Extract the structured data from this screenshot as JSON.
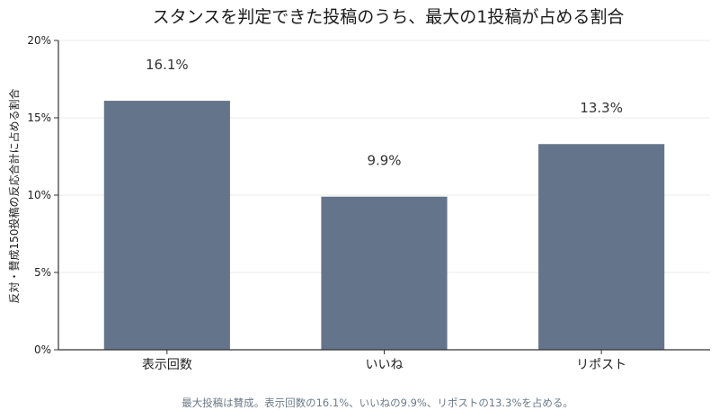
{
  "chart_data": {
    "type": "bar",
    "title": "スタンスを判定できた投稿のうち、最大の1投稿が占める割合",
    "ylabel": "反対・賛成150投稿の反応合計に占める割合",
    "xlabel": "",
    "categories": [
      "表示回数",
      "いいね",
      "リポスト"
    ],
    "values": [
      16.1,
      9.9,
      13.3
    ],
    "data_labels": [
      "16.1%",
      "9.9%",
      "13.3%"
    ],
    "ylim": [
      0,
      20
    ],
    "yticks": [
      0,
      5,
      10,
      15,
      20
    ],
    "ytick_labels": [
      "0%",
      "5%",
      "10%",
      "15%",
      "20%"
    ],
    "bar_color": "#64748b",
    "grid": true,
    "legend": "none",
    "caption": "最大投稿は賛成。表示回数の16.1%、いいねの9.9%、リポストの13.3%を占める。"
  }
}
